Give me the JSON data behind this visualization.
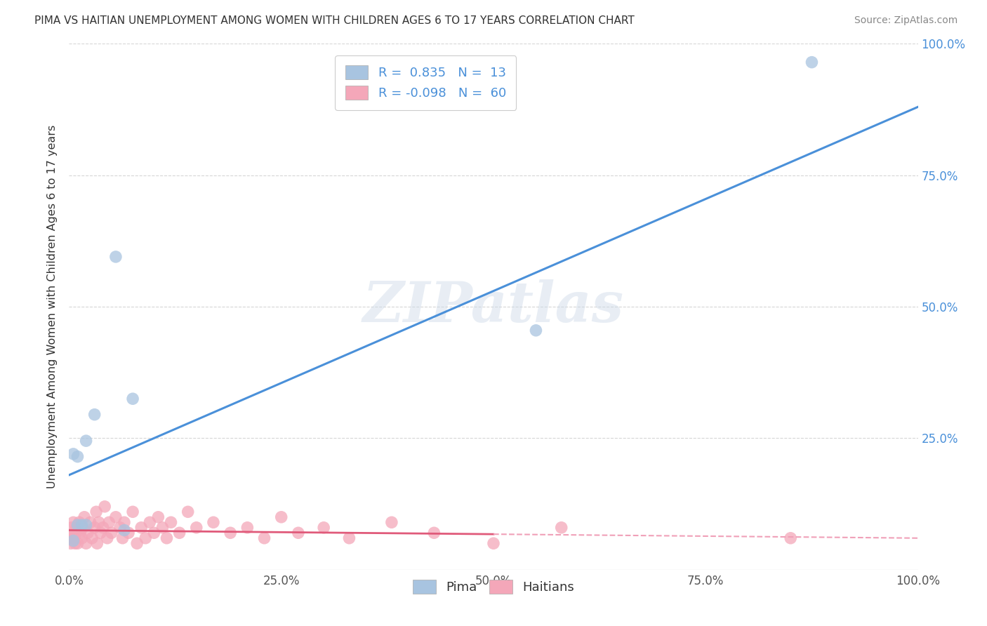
{
  "title": "PIMA VS HAITIAN UNEMPLOYMENT AMONG WOMEN WITH CHILDREN AGES 6 TO 17 YEARS CORRELATION CHART",
  "source": "Source: ZipAtlas.com",
  "ylabel": "Unemployment Among Women with Children Ages 6 to 17 years",
  "xlim": [
    0.0,
    1.0
  ],
  "ylim": [
    0.0,
    1.0
  ],
  "xtick_labels": [
    "0.0%",
    "25.0%",
    "50.0%",
    "75.0%",
    "100.0%"
  ],
  "xtick_vals": [
    0.0,
    0.25,
    0.5,
    0.75,
    1.0
  ],
  "ytick_labels": [
    "25.0%",
    "50.0%",
    "75.0%",
    "100.0%"
  ],
  "ytick_vals": [
    0.25,
    0.5,
    0.75,
    1.0
  ],
  "pima_color": "#a8c4e0",
  "haitian_color": "#f4a7b9",
  "pima_line_color": "#4a90d9",
  "haitian_line_color": "#e05a7a",
  "haitian_line_dash_color": "#f0a0b8",
  "legend_text_color": "#4a90d9",
  "watermark": "ZIPatlas",
  "pima_R": 0.835,
  "pima_N": 13,
  "haitian_R": -0.098,
  "haitian_N": 60,
  "pima_points_x": [
    0.005,
    0.005,
    0.01,
    0.01,
    0.015,
    0.02,
    0.02,
    0.03,
    0.055,
    0.065,
    0.075,
    0.55,
    0.875
  ],
  "pima_points_y": [
    0.055,
    0.22,
    0.215,
    0.085,
    0.085,
    0.085,
    0.245,
    0.295,
    0.595,
    0.075,
    0.325,
    0.455,
    0.965
  ],
  "haitian_points_x": [
    0.0,
    0.002,
    0.003,
    0.004,
    0.005,
    0.006,
    0.007,
    0.008,
    0.009,
    0.01,
    0.012,
    0.013,
    0.015,
    0.016,
    0.018,
    0.02,
    0.022,
    0.025,
    0.027,
    0.03,
    0.032,
    0.033,
    0.035,
    0.037,
    0.04,
    0.042,
    0.045,
    0.047,
    0.05,
    0.055,
    0.06,
    0.063,
    0.065,
    0.07,
    0.075,
    0.08,
    0.085,
    0.09,
    0.095,
    0.1,
    0.105,
    0.11,
    0.115,
    0.12,
    0.13,
    0.14,
    0.15,
    0.17,
    0.19,
    0.21,
    0.23,
    0.25,
    0.27,
    0.3,
    0.33,
    0.38,
    0.43,
    0.5,
    0.58,
    0.85
  ],
  "haitian_points_y": [
    0.06,
    0.05,
    0.08,
    0.07,
    0.09,
    0.06,
    0.05,
    0.07,
    0.08,
    0.05,
    0.09,
    0.07,
    0.06,
    0.08,
    0.1,
    0.05,
    0.07,
    0.09,
    0.06,
    0.08,
    0.11,
    0.05,
    0.09,
    0.07,
    0.08,
    0.12,
    0.06,
    0.09,
    0.07,
    0.1,
    0.08,
    0.06,
    0.09,
    0.07,
    0.11,
    0.05,
    0.08,
    0.06,
    0.09,
    0.07,
    0.1,
    0.08,
    0.06,
    0.09,
    0.07,
    0.11,
    0.08,
    0.09,
    0.07,
    0.08,
    0.06,
    0.1,
    0.07,
    0.08,
    0.06,
    0.09,
    0.07,
    0.05,
    0.08,
    0.06
  ]
}
